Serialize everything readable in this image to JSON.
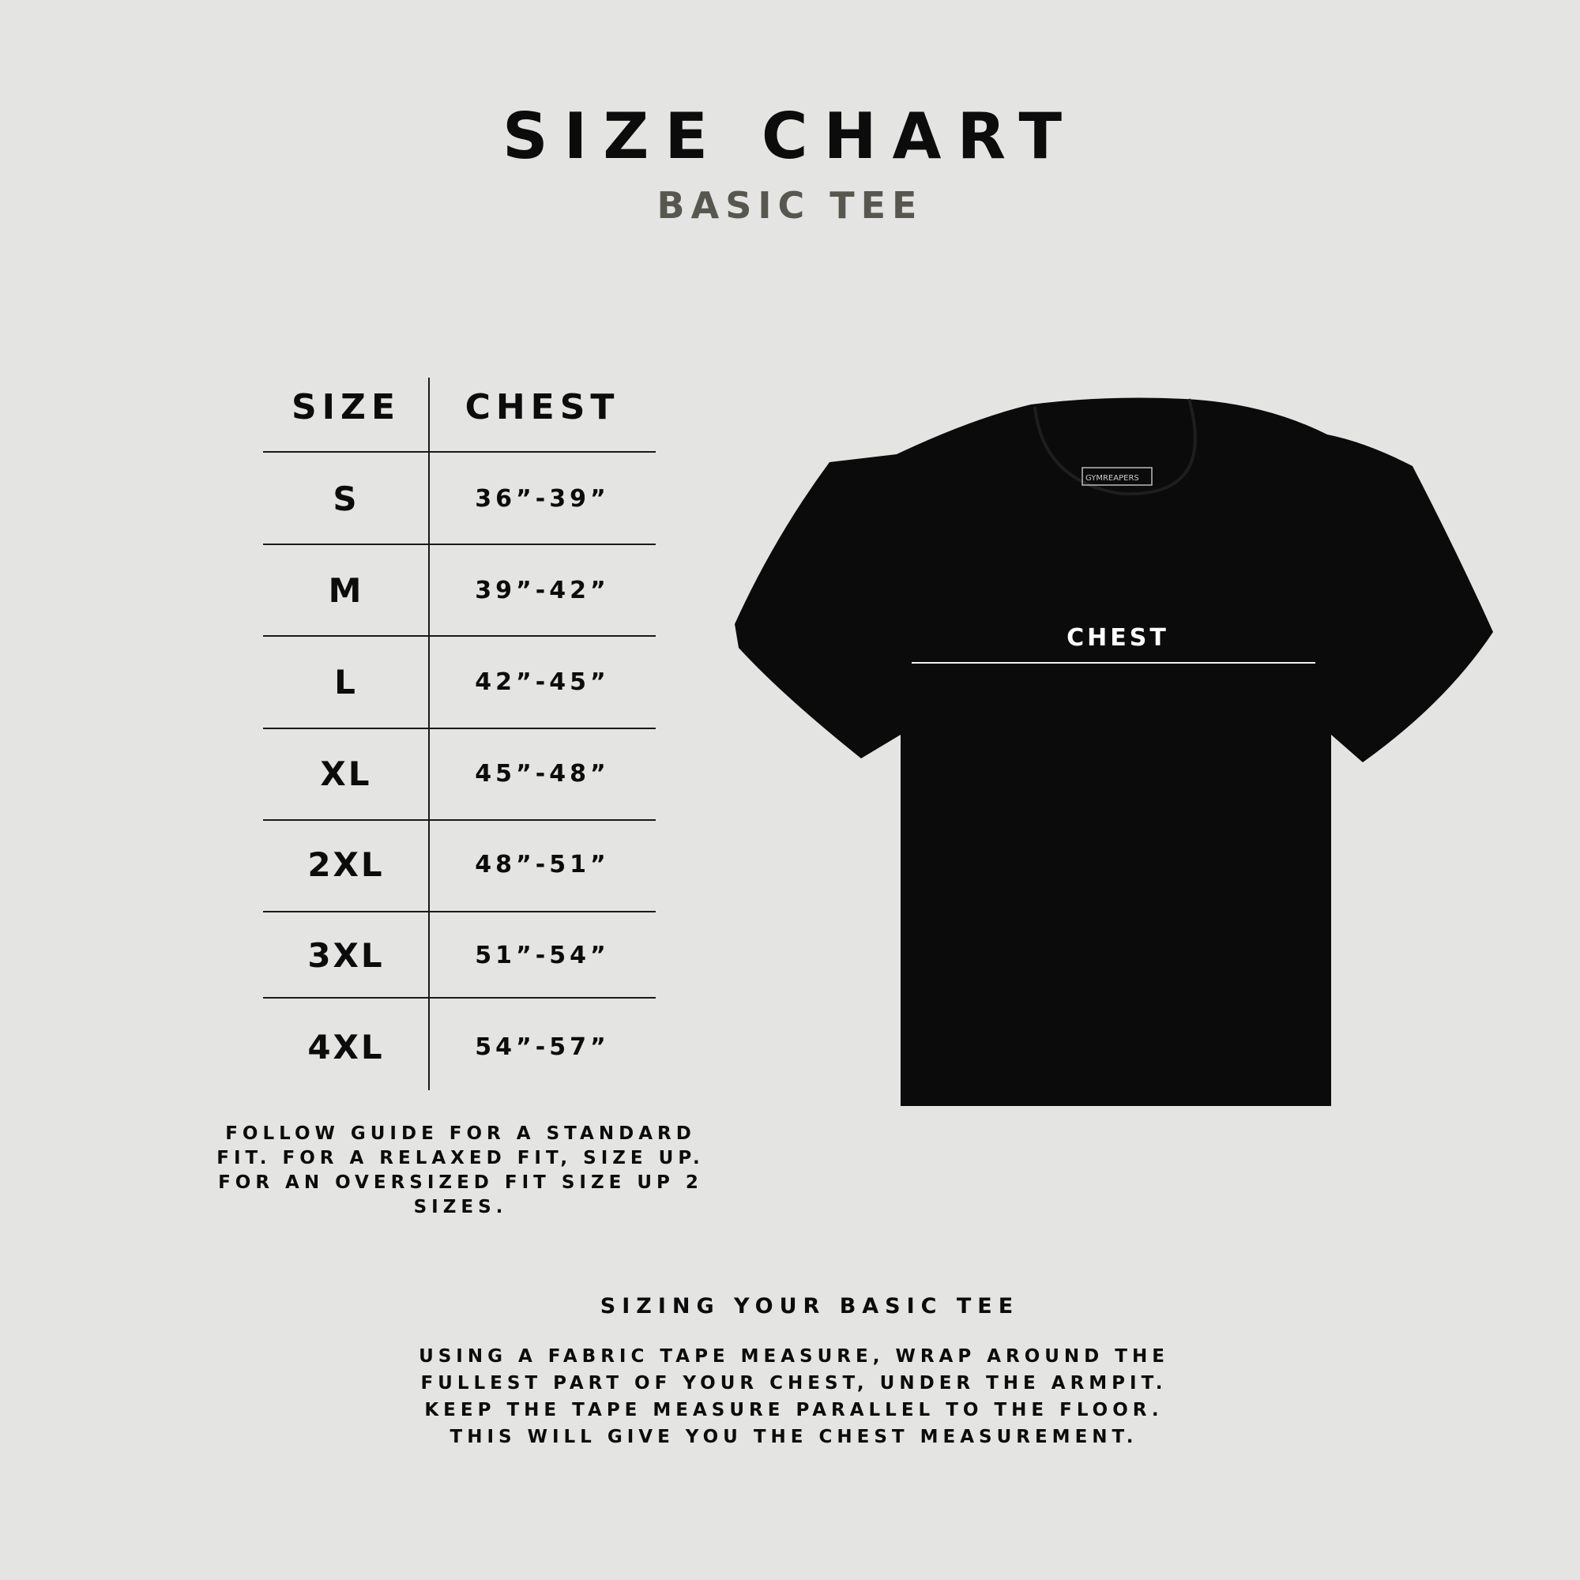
{
  "header": {
    "title": "SIZE CHART",
    "subtitle": "BASIC TEE"
  },
  "table": {
    "columns": [
      "SIZE",
      "CHEST"
    ],
    "rows": [
      {
        "size": "S",
        "chest": "36”-39”"
      },
      {
        "size": "M",
        "chest": "39”-42”"
      },
      {
        "size": "L",
        "chest": "42”-45”"
      },
      {
        "size": "XL",
        "chest": "45”-48”"
      },
      {
        "size": "2XL",
        "chest": "48”-51”"
      },
      {
        "size": "3XL",
        "chest": "51”-54”"
      },
      {
        "size": "4XL",
        "chest": "54”-57”"
      }
    ]
  },
  "fit_note": "FOLLOW GUIDE FOR A STANDARD FIT. FOR A RELAXED FIT, SIZE UP. FOR AN OVERSIZED FIT SIZE UP 2 SIZES.",
  "diagram": {
    "chest_label": "CHEST",
    "brand_label": "GYMREAPERS"
  },
  "howto": {
    "heading": "SIZING YOUR BASIC TEE",
    "text": "USING A FABRIC TAPE MEASURE, WRAP AROUND THE FULLEST PART OF YOUR CHEST, UNDER THE ARMPIT. KEEP THE TAPE MEASURE PARALLEL TO THE FLOOR. THIS WILL GIVE YOU THE CHEST MEASUREMENT."
  },
  "colors": {
    "background": "#e4e4e3",
    "text": "#0c0c0c",
    "subtitle": "#57574f",
    "tee": "#0b0b0b"
  }
}
